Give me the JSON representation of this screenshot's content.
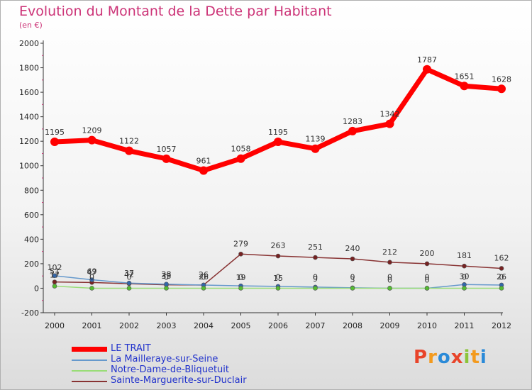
{
  "header": {
    "title": "Evolution du Montant de la Dette par Habitant",
    "subtitle": "(en €)"
  },
  "brand": {
    "text": "Proxiti",
    "letters": [
      {
        "ch": "P",
        "color": "#e8442a"
      },
      {
        "ch": "r",
        "color": "#f39a1e"
      },
      {
        "ch": "o",
        "color": "#2a8ad8"
      },
      {
        "ch": "x",
        "color": "#e8442a"
      },
      {
        "ch": "i",
        "color": "#8cc43a"
      },
      {
        "ch": "t",
        "color": "#f39a1e"
      },
      {
        "ch": "i",
        "color": "#2a8ad8"
      }
    ]
  },
  "chart_data": {
    "type": "line",
    "x": [
      "2000",
      "2001",
      "2002",
      "2003",
      "2004",
      "2005",
      "2006",
      "2007",
      "2008",
      "2009",
      "2010",
      "2011",
      "2012"
    ],
    "ylim": [
      -200,
      2000
    ],
    "yticks": [
      "-200",
      "0",
      "200",
      "400",
      "600",
      "800",
      "1000",
      "1200",
      "1400",
      "1600",
      "1800",
      "2000"
    ],
    "grid": false,
    "legend_position": "bottom-left",
    "series": [
      {
        "name": "LE TRAIT",
        "color": "#ff0000",
        "marker_color": "#ff0000",
        "values": [
          1195,
          1209,
          1122,
          1057,
          961,
          1058,
          1195,
          1139,
          1283,
          1342,
          1787,
          1651,
          1628
        ],
        "labels": [
          "1195",
          "1209",
          "1122",
          "1057",
          "961",
          "1058",
          "1195",
          "1139",
          "1283",
          "1342",
          "1787",
          "1651",
          "1628"
        ]
      },
      {
        "name": "La Mailleraye-sur-Seine",
        "color": "#6699cc",
        "marker_color": "#3366aa",
        "values": [
          102,
          69,
          42,
          33,
          26,
          19,
          15,
          9,
          3,
          0,
          0,
          30,
          26
        ],
        "labels": [
          "102",
          "69",
          "42",
          "33",
          "26",
          "19",
          "15",
          "9",
          "3",
          "0",
          "0",
          "30",
          "26"
        ]
      },
      {
        "name": "Notre-Dame-de-Bliquetuit",
        "color": "#99dd77",
        "marker_color": "#55bb33",
        "values": [
          17,
          0,
          0,
          0,
          0,
          0,
          0,
          0,
          0,
          0,
          0,
          0,
          0
        ],
        "labels": [
          "17",
          "0",
          "0",
          "0",
          "0",
          "0",
          "0",
          "0",
          "0",
          "0",
          "0",
          "0",
          "0"
        ]
      },
      {
        "name": "Sainte-Marguerite-sur-Duclair",
        "color": "#883333",
        "marker_color": "#772222",
        "values": [
          51,
          47,
          37,
          28,
          26,
          279,
          263,
          251,
          240,
          212,
          200,
          181,
          162
        ],
        "labels": [
          "51",
          "47",
          "37",
          "28",
          "26",
          "279",
          "263",
          "251",
          "240",
          "212",
          "200",
          "181",
          "162"
        ]
      }
    ]
  }
}
